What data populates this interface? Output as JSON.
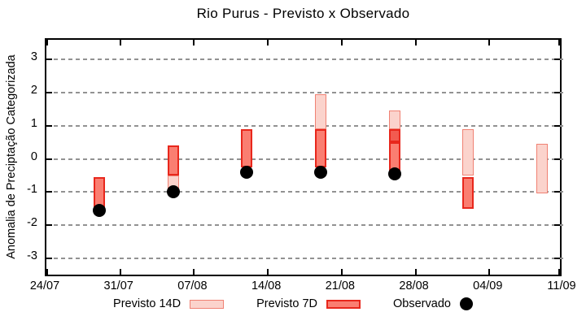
{
  "chart_data": {
    "type": "bar",
    "subtype": "range-bars-with-observed-points",
    "title": "Rio Purus - Previsto x Observado",
    "ylabel": "Anomalia de Preciptação Categorizada",
    "xlabel": "",
    "ylim": [
      -3.6,
      3.6
    ],
    "yticks": [
      3,
      2,
      1,
      0,
      -1,
      -2,
      -3
    ],
    "ytick_labels": [
      "3",
      "2",
      "1",
      "0",
      "-1",
      "-2",
      "-3"
    ],
    "xtick_labels": [
      "24/07",
      "31/07",
      "07/08",
      "14/08",
      "21/08",
      "28/08",
      "04/09",
      "11/09"
    ],
    "xtick_interval_days": 7,
    "x_day_span": 49,
    "grid": true,
    "legend_position": "bottom",
    "colors": {
      "p14_fill": "#fbd3cc",
      "p14_border": "#f08173",
      "p7_fill": "#fa7e71",
      "p7_border": "#e8271c",
      "overlap_fill": "#f25b50",
      "observed": "#000000",
      "grid": "#929292",
      "axis": "#000000"
    },
    "legend": [
      {
        "key": "p14",
        "label": "Previsto 14D",
        "marker": "bar"
      },
      {
        "key": "p7",
        "label": "Previsto 7D",
        "marker": "bar"
      },
      {
        "key": "obs",
        "label": "Observado",
        "marker": "dot"
      }
    ],
    "clusters": [
      {
        "x_days": 5,
        "segments": [
          {
            "kind": "p7",
            "lo": -1.45,
            "hi": -0.55
          }
        ],
        "observed": -1.55
      },
      {
        "x_days": 12,
        "segments": [
          {
            "kind": "p7",
            "lo": -0.5,
            "hi": 0.4
          },
          {
            "kind": "p14",
            "lo": -0.9,
            "hi": -0.5
          }
        ],
        "observed": -1.0
      },
      {
        "x_days": 19,
        "segments": [
          {
            "kind": "p7",
            "lo": -0.25,
            "hi": 0.9
          }
        ],
        "observed": -0.4
      },
      {
        "x_days": 26,
        "segments": [
          {
            "kind": "p14",
            "lo": 0.9,
            "hi": 1.95
          },
          {
            "kind": "p7",
            "lo": -0.25,
            "hi": 0.9
          }
        ],
        "observed": -0.4
      },
      {
        "x_days": 33,
        "segments": [
          {
            "kind": "p14",
            "lo": 0.9,
            "hi": 1.45
          },
          {
            "kind": "overlap",
            "lo": 0.5,
            "hi": 0.9
          },
          {
            "kind": "p7",
            "lo": -0.35,
            "hi": 0.5
          }
        ],
        "observed": -0.45
      },
      {
        "x_days": 40,
        "segments": [
          {
            "kind": "p14",
            "lo": -0.5,
            "hi": 0.9
          },
          {
            "kind": "p7",
            "lo": -1.5,
            "hi": -0.55
          }
        ],
        "observed": null
      },
      {
        "x_days": 47,
        "segments": [
          {
            "kind": "p14",
            "lo": -1.05,
            "hi": 0.45
          }
        ],
        "observed": null
      }
    ]
  }
}
